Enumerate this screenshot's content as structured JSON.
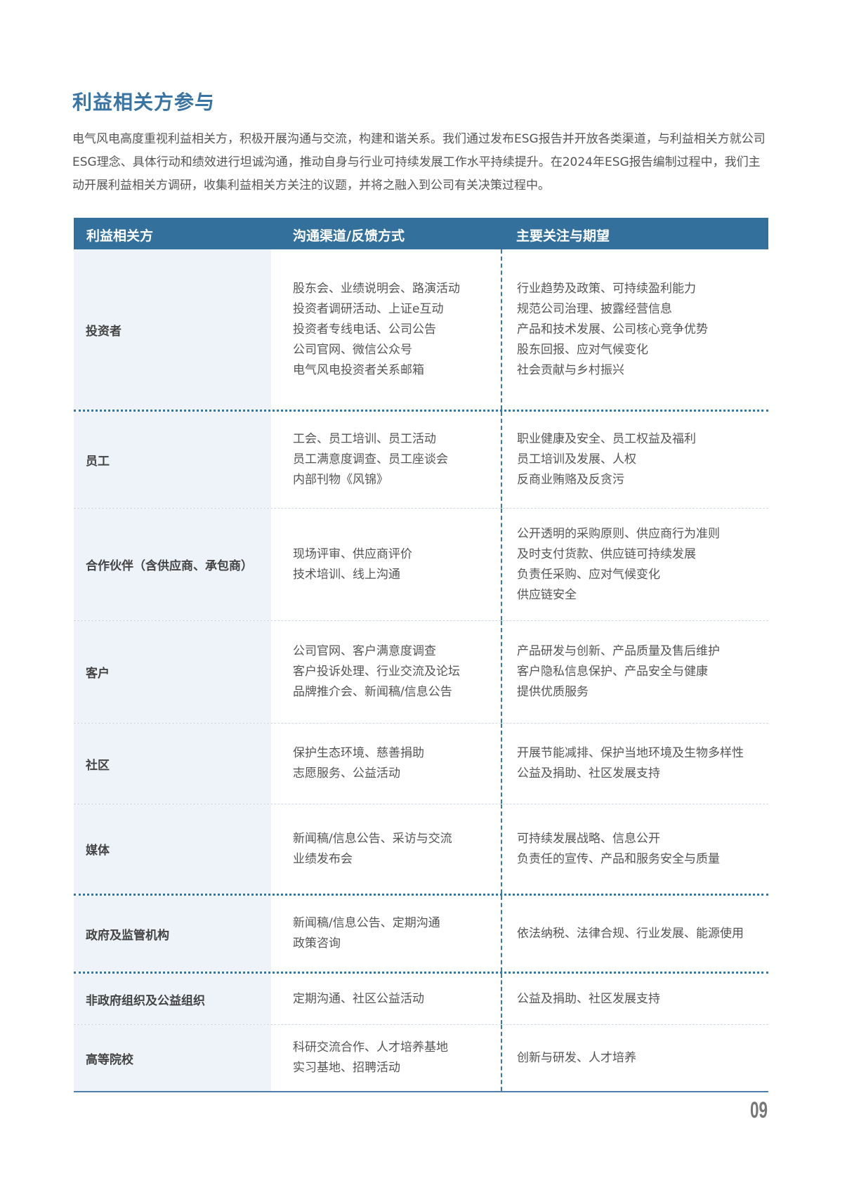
{
  "title": "利益相关方参与",
  "intro": "电气风电高度重视利益相关方，积极开展沟通与交流，构建和谐关系。我们通过发布ESG报告并开放各类渠道，与利益相关方就公司ESG理念、具体行动和绩效进行坦诚沟通，推动自身与行业可持续发展工作水平持续提升。在2024年ESG报告编制过程中，我们主动开展利益相关方调研，收集利益相关方关注的议题，并将之融入到公司有关决策过程中。",
  "table": {
    "headers": [
      "利益相关方",
      "沟通渠道/反馈方式",
      "主要关注与期望"
    ],
    "rows": [
      {
        "stakeholder": "投资者",
        "channels": [
          "股东会、业绩说明会、路演活动",
          "投资者调研活动、上证e互动",
          "投资者专线电话、公司公告",
          "公司官网、微信公众号",
          "电气风电投资者关系邮箱"
        ],
        "concerns": [
          "行业趋势及政策、可持续盈利能力",
          "规范公司治理、披露经营信息",
          "产品和技术发展、公司核心竞争优势",
          "股东回报、应对气候变化",
          "社会贡献与乡村振兴"
        ]
      },
      {
        "stakeholder": "员工",
        "channels": [
          "工会、员工培训、员工活动",
          "员工满意度调查、员工座谈会",
          "内部刊物《风锦》"
        ],
        "concerns": [
          "职业健康及安全、员工权益及福利",
          "员工培训及发展、人权",
          "反商业贿赂及反贪污"
        ]
      },
      {
        "stakeholder": "合作伙伴（含供应商、承包商）",
        "channels": [
          "现场评审、供应商评价",
          "技术培训、线上沟通"
        ],
        "concerns": [
          "公开透明的采购原则、供应商行为准则",
          "及时支付货款、供应链可持续发展",
          "负责任采购、应对气候变化",
          "供应链安全"
        ]
      },
      {
        "stakeholder": "客户",
        "channels": [
          "公司官网、客户满意度调查",
          "客户投诉处理、行业交流及论坛",
          "品牌推介会、新闻稿/信息公告"
        ],
        "concerns": [
          "产品研发与创新、产品质量及售后维护",
          "客户隐私信息保护、产品安全与健康",
          "提供优质服务"
        ]
      },
      {
        "stakeholder": "社区",
        "channels": [
          "保护生态环境、慈善捐助",
          "志愿服务、公益活动"
        ],
        "concerns": [
          "开展节能减排、保护当地环境及生物多样性",
          "公益及捐助、社区发展支持"
        ]
      },
      {
        "stakeholder": "媒体",
        "channels": [
          "新闻稿/信息公告、采访与交流",
          "业绩发布会"
        ],
        "concerns": [
          "可持续发展战略、信息公开",
          "负责任的宣传、产品和服务安全与质量"
        ]
      },
      {
        "stakeholder": "政府及监管机构",
        "channels": [
          "新闻稿/信息公告、定期沟通",
          "政策咨询"
        ],
        "concerns": [
          "依法纳税、法律合规、行业发展、能源使用"
        ]
      },
      {
        "stakeholder": "非政府组织及公益组织",
        "channels": [
          "定期沟通、社区公益活动"
        ],
        "concerns": [
          "公益及捐助、社区发展支持"
        ]
      },
      {
        "stakeholder": "高等院校",
        "channels": [
          "科研交流合作、人才培养基地",
          "实习基地、招聘活动"
        ],
        "concerns": [
          "创新与研发、人才培养"
        ]
      }
    ]
  },
  "page_number": "09",
  "colors": {
    "accent": "#33709c",
    "stakeholder_bg": "#eef3fa"
  }
}
